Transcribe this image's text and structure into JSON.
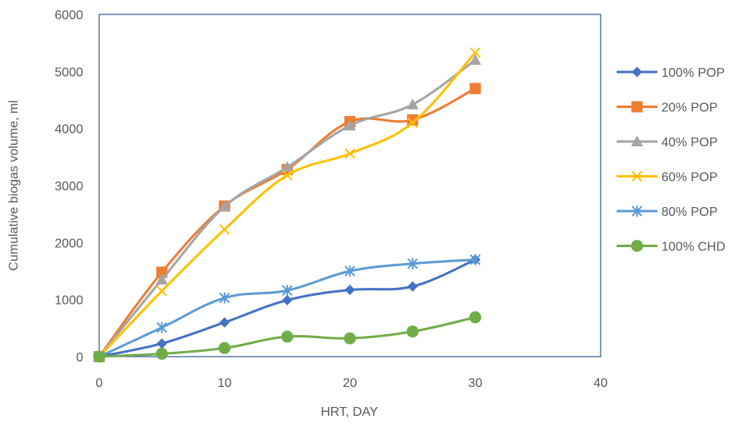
{
  "chart_data": {
    "type": "line",
    "title": "",
    "xlabel": "HRT, DAY",
    "ylabel": "Cumulative biogas volume, ml",
    "xlim": [
      0,
      40
    ],
    "ylim": [
      0,
      6000
    ],
    "x_ticks": [
      "0",
      "10",
      "20",
      "30",
      "40"
    ],
    "y_ticks": [
      "0",
      "1000",
      "2000",
      "3000",
      "4000",
      "5000",
      "6000"
    ],
    "grid": false,
    "legend_position": "right",
    "x": [
      0,
      5,
      10,
      15,
      20,
      25,
      30
    ],
    "series": [
      {
        "name": "100% POP",
        "color": "#4472C4",
        "marker": "diamond",
        "values": [
          0,
          230,
          600,
          990,
          1170,
          1230,
          1700
        ]
      },
      {
        "name": "20% POP",
        "color": "#ED7D31",
        "marker": "square",
        "values": [
          0,
          1480,
          2640,
          3280,
          4120,
          4150,
          4700
        ]
      },
      {
        "name": "40% POP",
        "color": "#A5A5A5",
        "marker": "triangle",
        "values": [
          0,
          1350,
          2630,
          3320,
          4050,
          4420,
          5200
        ]
      },
      {
        "name": "60% POP",
        "color": "#FFC000",
        "marker": "x",
        "values": [
          0,
          1150,
          2230,
          3180,
          3560,
          4100,
          5330
        ]
      },
      {
        "name": "80% POP",
        "color": "#5B9BD5",
        "marker": "star",
        "values": [
          0,
          510,
          1030,
          1160,
          1500,
          1630,
          1700
        ]
      },
      {
        "name": "100% CHD",
        "color": "#70AD47",
        "marker": "circle",
        "values": [
          0,
          50,
          150,
          350,
          320,
          440,
          690
        ]
      }
    ]
  }
}
